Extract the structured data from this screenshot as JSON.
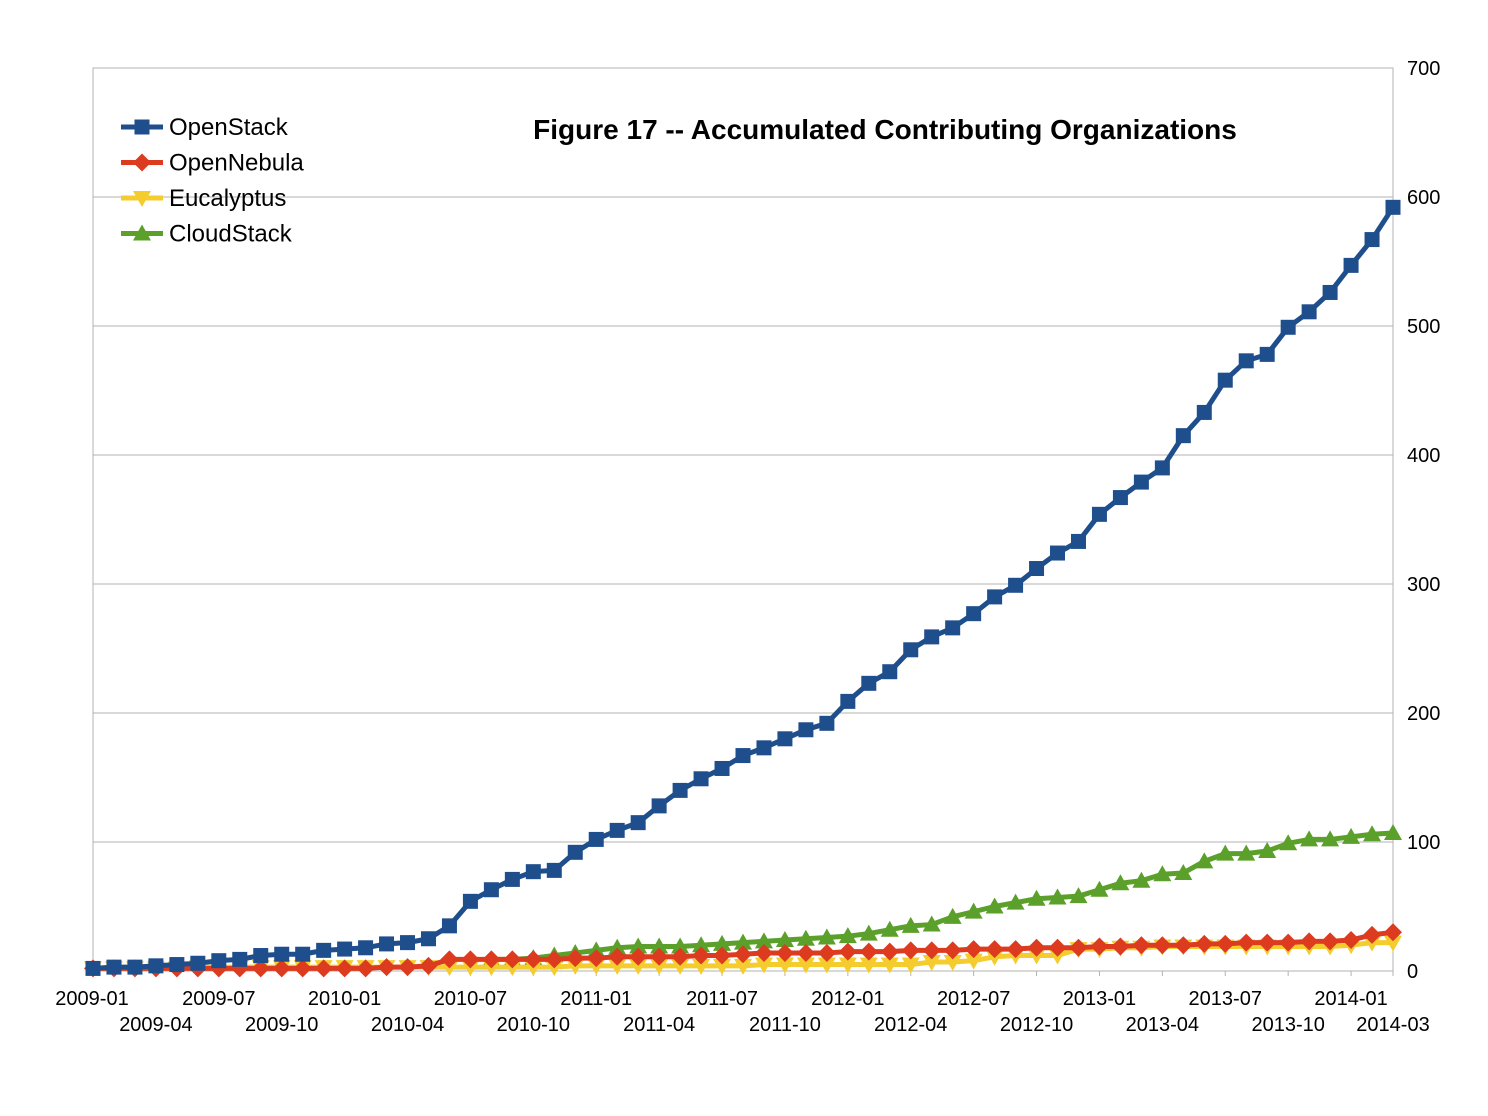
{
  "chart_data": {
    "type": "line",
    "title": "Figure 17 -- Accumulated Contributing Organizations",
    "xlabel": "",
    "ylabel": "",
    "ylim": [
      0,
      700
    ],
    "yticks": [
      "0",
      "100",
      "200",
      "300",
      "400",
      "500",
      "600",
      "700"
    ],
    "y_axis_side": "right",
    "grid": true,
    "legend_position": "top-left",
    "x_start": "2009-01",
    "x_end": "2014-03",
    "x_tick_labels": [
      "2009-01",
      "2009-04",
      "2009-07",
      "2009-10",
      "2010-01",
      "2010-04",
      "2010-07",
      "2010-10",
      "2011-01",
      "2011-04",
      "2011-07",
      "2011-10",
      "2012-01",
      "2012-04",
      "2012-07",
      "2012-10",
      "2013-01",
      "2013-04",
      "2013-07",
      "2013-10",
      "2014-01",
      "2014-03"
    ],
    "series": [
      {
        "name": "OpenStack",
        "color": "#1f4e8c",
        "marker": "square",
        "values": [
          2,
          3,
          3,
          4,
          5,
          6,
          8,
          9,
          12,
          13,
          13,
          16,
          17,
          18,
          21,
          22,
          25,
          35,
          54,
          63,
          71,
          77,
          78,
          92,
          102,
          109,
          115,
          128,
          140,
          149,
          157,
          167,
          173,
          180,
          187,
          192,
          209,
          223,
          232,
          249,
          259,
          266,
          277,
          290,
          299,
          312,
          324,
          333,
          354,
          367,
          379,
          390,
          415,
          433,
          458,
          473,
          478,
          499,
          511,
          526,
          547,
          567,
          592
        ]
      },
      {
        "name": "OpenNebula",
        "color": "#dd3b1f",
        "marker": "diamond",
        "values": [
          2,
          2,
          2,
          2,
          2,
          2,
          2,
          2,
          2,
          2,
          2,
          2,
          2,
          2,
          3,
          3,
          4,
          9,
          9,
          9,
          9,
          9,
          9,
          10,
          10,
          11,
          11,
          11,
          11,
          12,
          12,
          13,
          14,
          14,
          14,
          14,
          15,
          15,
          15,
          16,
          16,
          16,
          17,
          17,
          17,
          18,
          18,
          18,
          19,
          19,
          20,
          20,
          20,
          21,
          21,
          22,
          22,
          22,
          23,
          23,
          24,
          28,
          30
        ]
      },
      {
        "name": "Eucalyptus",
        "color": "#f5cc2e",
        "marker": "triangle-down",
        "values": [
          2,
          2,
          2,
          2,
          2,
          3,
          3,
          3,
          3,
          3,
          3,
          3,
          3,
          3,
          3,
          3,
          3,
          3,
          3,
          3,
          3,
          3,
          3,
          4,
          4,
          4,
          4,
          4,
          4,
          4,
          4,
          4,
          5,
          5,
          5,
          5,
          5,
          5,
          5,
          5,
          7,
          7,
          8,
          11,
          12,
          12,
          12,
          17,
          17,
          18,
          18,
          19,
          19,
          19,
          19,
          19,
          19,
          19,
          19,
          19,
          20,
          22,
          22
        ]
      },
      {
        "name": "CloudStack",
        "color": "#5ba02a",
        "marker": "triangle-up",
        "x_offset": 19,
        "values": [
          9,
          9,
          10,
          12,
          14,
          16,
          18,
          19,
          19,
          19,
          20,
          21,
          22,
          23,
          24,
          25,
          26,
          27,
          29,
          32,
          35,
          36,
          42,
          46,
          50,
          53,
          56,
          57,
          58,
          63,
          68,
          70,
          75,
          76,
          85,
          91,
          91,
          93,
          99,
          102,
          102,
          104,
          106,
          107
        ]
      }
    ]
  }
}
